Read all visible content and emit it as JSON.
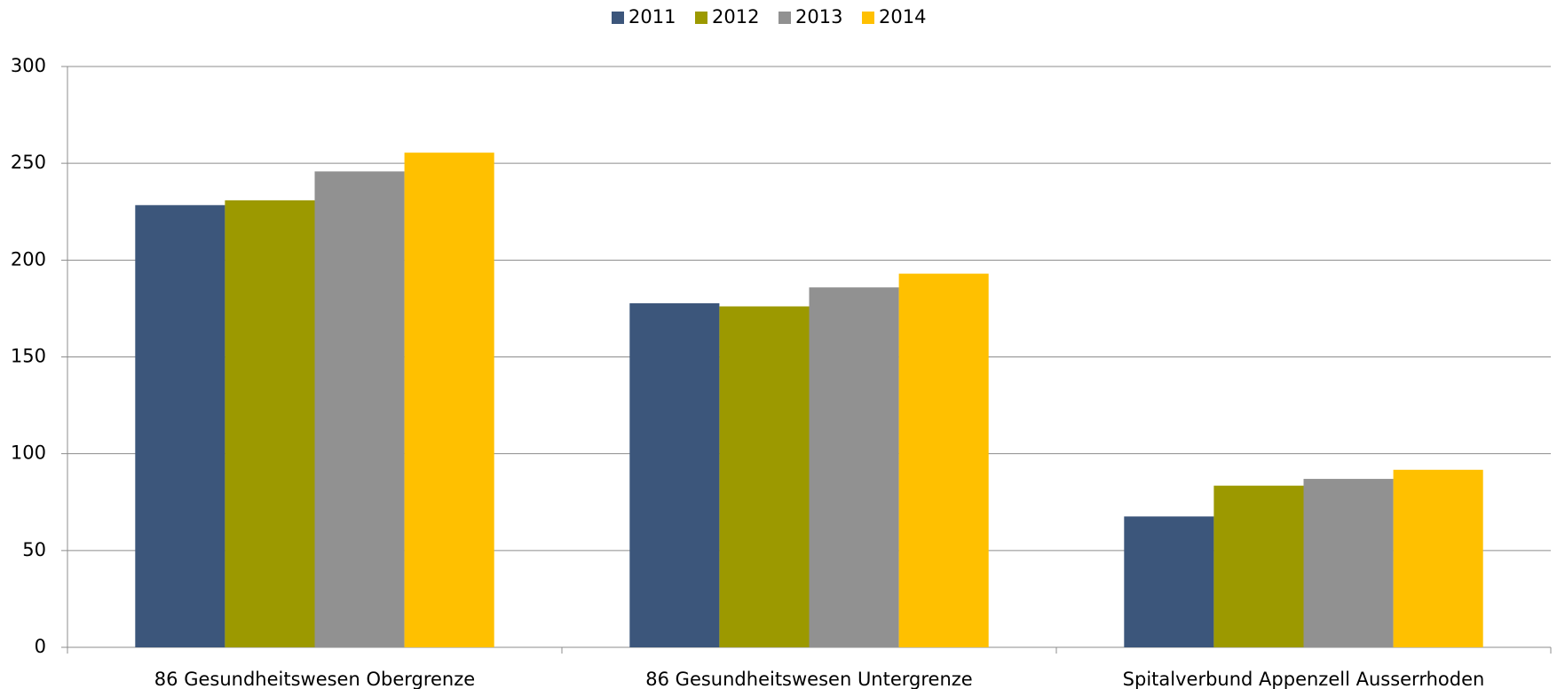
{
  "chart_data": {
    "type": "bar",
    "categories": [
      "86 Gesundheitswesen Obergrenze",
      "86 Gesundheitswesen Untergrenze",
      "Spitalverbund Appenzell Ausserrhoden"
    ],
    "series": [
      {
        "name": "2011",
        "color": "#3c567b",
        "values": [
          228.4,
          177.7,
          67.6
        ]
      },
      {
        "name": "2012",
        "color": "#9c9900",
        "values": [
          230.9,
          176.1,
          83.5
        ]
      },
      {
        "name": "2013",
        "color": "#919191",
        "values": [
          245.8,
          185.9,
          87.0
        ]
      },
      {
        "name": "2014",
        "color": "#ffc000",
        "values": [
          255.5,
          193.0,
          91.7
        ]
      }
    ],
    "ylim": [
      0,
      300
    ],
    "yticks": [
      0,
      50,
      100,
      150,
      200,
      250,
      300
    ],
    "grid": true,
    "legend": "top"
  }
}
